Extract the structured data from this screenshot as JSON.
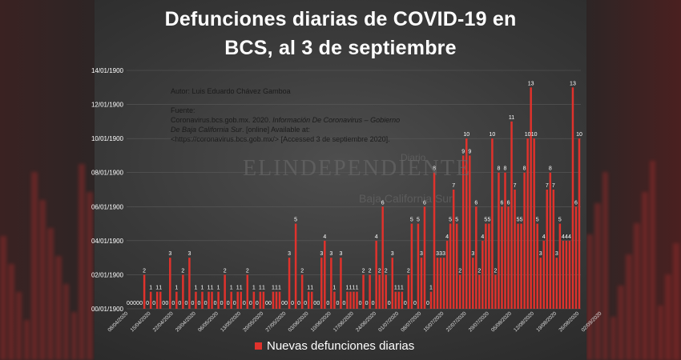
{
  "title_line1": "Defunciones diarias  de COVID-19 en",
  "title_line2": "BCS, al 3 de septiembre",
  "author": "Autor: Luis Eduardo Chávez Gamboa",
  "source": {
    "label": "Fuente:",
    "line1_plain": "Coronavirus.bcs.gob.mx. 2020. ",
    "line1_italic": "Información De Coronavirus – Gobierno",
    "line2_italic": "De Baja California Sur",
    "line2_plain": ". [online] Available at:",
    "line3": "<https://coronavirus.bcs.gob.mx/> [Accessed  3 de septiembre 2020]."
  },
  "watermark": {
    "word": "ELINDEPENDIENTE",
    "small1": "Diario",
    "small2": "Baja California Sur"
  },
  "colors": {
    "bar": "#e0322c",
    "text": "#ffffff",
    "grid": "#5a5a5a"
  },
  "chart_data": {
    "type": "bar",
    "title": "Defunciones diarias  de COVID-19 en BCS, al 3 de septiembre",
    "legend": "Nuevas defunciones diarias",
    "legend_position": "bottom",
    "grid": true,
    "y_tick_labels": [
      "00/01/1900",
      "02/01/1900",
      "04/01/1900",
      "06/01/1900",
      "08/01/1900",
      "10/01/1900",
      "12/01/1900",
      "14/01/1900"
    ],
    "ylim": [
      0,
      14
    ],
    "x_tick_labels": [
      "08/04/2020",
      "15/04/2020",
      "22/04/2020",
      "29/04/2020",
      "06/05/2020",
      "13/05/2020",
      "20/05/2020",
      "27/05/2020",
      "03/06/2020",
      "10/06/2020",
      "17/06/2020",
      "24/06/2020",
      "01/07/2020",
      "08/07/2020",
      "15/07/2020",
      "22/07/2020",
      "29/07/2020",
      "05/08/2020",
      "12/08/2020",
      "19/08/2020",
      "26/08/2020",
      "02/09/2020"
    ],
    "first_date": "08/04/2020",
    "last_date": "03/09/2020",
    "values": [
      0,
      0,
      0,
      0,
      0,
      2,
      0,
      1,
      0,
      1,
      1,
      0,
      0,
      3,
      0,
      1,
      0,
      2,
      0,
      3,
      0,
      1,
      0,
      1,
      0,
      1,
      1,
      0,
      1,
      0,
      2,
      0,
      1,
      0,
      1,
      1,
      0,
      2,
      0,
      1,
      0,
      1,
      1,
      0,
      0,
      1,
      1,
      1,
      0,
      0,
      3,
      0,
      5,
      0,
      2,
      0,
      1,
      1,
      0,
      0,
      3,
      4,
      0,
      3,
      1,
      0,
      3,
      0,
      1,
      1,
      1,
      1,
      0,
      2,
      0,
      2,
      0,
      4,
      2,
      6,
      2,
      0,
      3,
      1,
      1,
      1,
      0,
      2,
      5,
      0,
      5,
      3,
      6,
      0,
      1,
      8,
      3,
      3,
      3,
      4,
      5,
      7,
      5,
      2,
      9,
      10,
      9,
      3,
      6,
      2,
      4,
      5,
      5,
      10,
      2,
      8,
      6,
      8,
      6,
      11,
      7,
      5,
      5,
      8,
      10,
      13,
      10,
      5,
      3,
      4,
      7,
      8,
      7,
      3,
      5,
      4,
      4,
      4,
      13,
      6,
      10
    ]
  }
}
